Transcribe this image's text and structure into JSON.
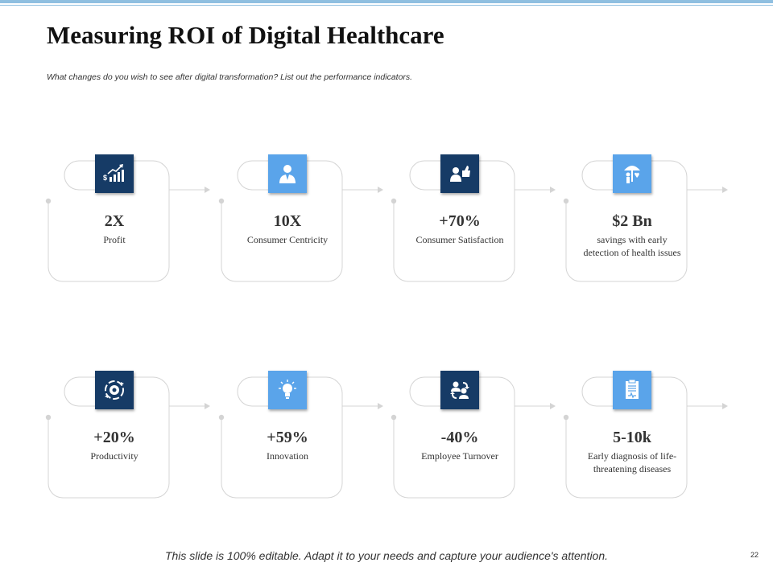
{
  "title": "Measuring ROI of Digital Healthcare",
  "subtitle": "What changes do you wish to see after digital transformation?  List out the performance indicators.",
  "footer": "This slide is 100% editable.  Adapt it to your needs and capture your audience's attention.",
  "page_number": "22",
  "colors": {
    "dark_icon": "#163b66",
    "light_icon": "#5aa4ea",
    "outline": "#d4d4d4"
  },
  "kpis": [
    {
      "value": "2X",
      "label": "Profit",
      "icon": "revenue-growth-icon"
    },
    {
      "value": "10X",
      "label": "Consumer  Centricity",
      "icon": "consumer-icon"
    },
    {
      "value": "+70%",
      "label": "Consumer Satisfaction",
      "icon": "thumbs-up-people-icon"
    },
    {
      "value": "$2 Bn",
      "label": "savings with early detection  of health issues",
      "icon": "umbrella-protection-icon"
    },
    {
      "value": "+20%",
      "label": "Productivity",
      "icon": "gear-cycle-icon"
    },
    {
      "value": "+59%",
      "label": "Innovation",
      "icon": "lightbulb-icon"
    },
    {
      "value": "-40%",
      "label": "Employee Turnover",
      "icon": "employee-exchange-icon"
    },
    {
      "value": "5-10k",
      "label": "Early diagnosis of life-threatening  diseases",
      "icon": "clipboard-report-icon"
    }
  ]
}
